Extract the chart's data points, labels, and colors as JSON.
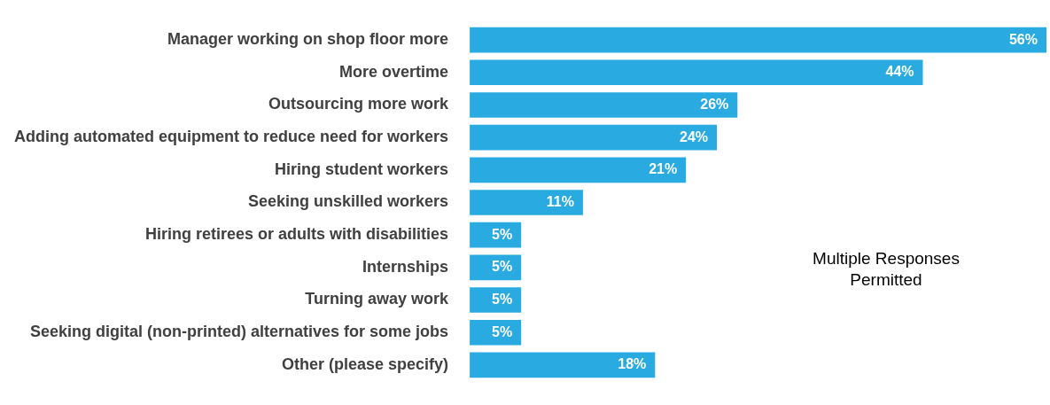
{
  "chart_data": {
    "type": "bar",
    "orientation": "horizontal",
    "categories": [
      "Manager working on shop floor more",
      "More overtime",
      "Outsourcing more work",
      "Adding automated equipment to reduce need for workers",
      "Hiring student workers",
      "Seeking unskilled workers",
      "Hiring retirees or adults with disabilities",
      "Internships",
      "Turning away work",
      "Seeking digital (non-printed) alternatives for some jobs",
      "Other (please specify)"
    ],
    "values": [
      56,
      44,
      26,
      24,
      21,
      11,
      5,
      5,
      5,
      5,
      18
    ],
    "value_labels": [
      "56%",
      "44%",
      "26%",
      "24%",
      "21%",
      "11%",
      "5%",
      "5%",
      "5%",
      "5%",
      "18%"
    ],
    "color": "#29abe2",
    "legend": false,
    "annotations": [
      "Multiple Responses Permitted"
    ]
  }
}
